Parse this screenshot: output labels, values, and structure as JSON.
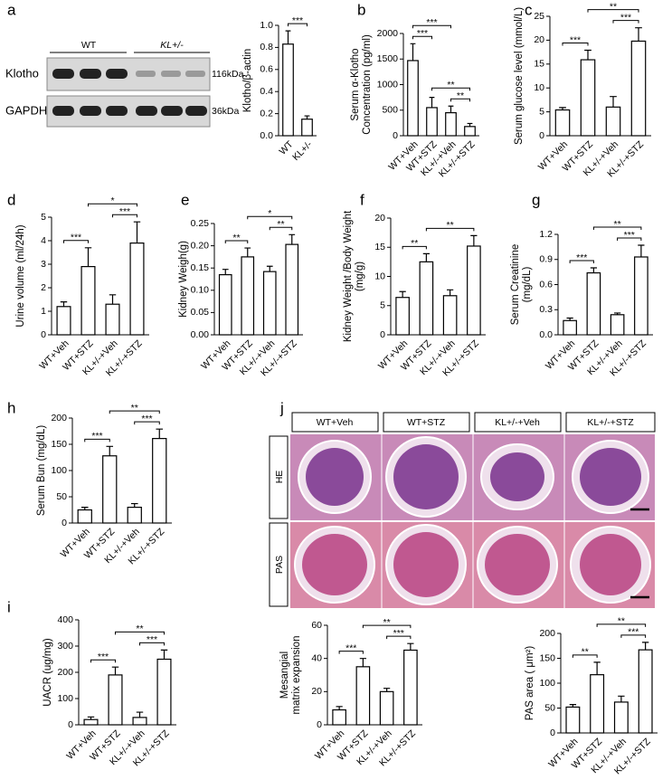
{
  "blot": {
    "panel": "a",
    "groups": [
      "WT",
      "KL+/-"
    ],
    "rows": [
      "Klotho",
      "GAPDH"
    ],
    "sizes": [
      "116kDa",
      "36kDa"
    ]
  },
  "histology": {
    "panel": "j",
    "columns": [
      "WT+Veh",
      "WT+STZ",
      "KL+/-+Veh",
      "KL+/-+STZ"
    ],
    "rows": [
      "HE",
      "PAS"
    ]
  },
  "chart_data": [
    {
      "type": "bar",
      "ylabel": [
        "Klotho/β-actin"
      ],
      "categories": [
        "WT",
        "KL+/-"
      ],
      "values": [
        0.83,
        0.15
      ],
      "errors": [
        0.12,
        0.03
      ],
      "color": "#ffffff",
      "edge_color": "#000000",
      "ylim": [
        0,
        1
      ],
      "yticks": [
        {
          "value": 0,
          "label": "0.0"
        },
        0.2,
        0.4,
        0.6,
        0.8,
        {
          "value": 1,
          "label": "1.0"
        }
      ],
      "brackets": [
        {
          "from": 0,
          "to": 1,
          "label": "***"
        }
      ]
    },
    {
      "type": "bar",
      "panel": "b",
      "ylabel": [
        "Serum α-Klotho",
        "Concentration (pg/ml)"
      ],
      "categories": [
        "WT+Veh",
        "WT+STZ",
        "KL+/-+Veh",
        "KL+/-+STZ"
      ],
      "values": [
        1470,
        550,
        450,
        180
      ],
      "errors": [
        330,
        200,
        130,
        60
      ],
      "color": "#ffffff",
      "edge_color": "#000000",
      "ylim": [
        0,
        2000
      ],
      "yticks": [
        0,
        500,
        1000,
        1500,
        2000
      ],
      "brackets": [
        {
          "from": 2,
          "to": 3,
          "label": "**"
        },
        {
          "from": 1,
          "to": 3,
          "label": "**"
        },
        {
          "from": 0,
          "to": 1,
          "label": "***"
        },
        {
          "from": 0,
          "to": 2,
          "label": "***"
        }
      ]
    },
    {
      "type": "bar",
      "panel": "c",
      "ylabel": [
        "Serum glucose level (mmol/L)"
      ],
      "categories": [
        "WT+Veh",
        "WT+STZ",
        "KL+/-+Veh",
        "KL+/-+STZ"
      ],
      "values": [
        5.4,
        15.9,
        6,
        19.8
      ],
      "errors": [
        0.5,
        2,
        2.2,
        2.8
      ],
      "color": "#ffffff",
      "edge_color": "#000000",
      "ylim": [
        0,
        25
      ],
      "yticks": [
        0,
        5,
        10,
        15,
        20,
        25
      ],
      "brackets": [
        {
          "from": 0,
          "to": 1,
          "label": "***"
        },
        {
          "from": 2,
          "to": 3,
          "label": "***"
        },
        {
          "from": 1,
          "to": 3,
          "label": "**"
        }
      ]
    },
    {
      "type": "bar",
      "panel": "d",
      "ylabel": [
        "Urine volume (ml/24h)"
      ],
      "categories": [
        "WT+Veh",
        "WT+STZ",
        "KL+/-+Veh",
        "KL+/-+STZ"
      ],
      "values": [
        1.2,
        2.9,
        1.3,
        3.9
      ],
      "errors": [
        0.2,
        0.8,
        0.4,
        0.9
      ],
      "color": "#ffffff",
      "edge_color": "#000000",
      "ylim": [
        0,
        5
      ],
      "yticks": [
        0,
        1,
        2,
        3,
        4,
        5
      ],
      "brackets": [
        {
          "from": 0,
          "to": 1,
          "label": "***"
        },
        {
          "from": 2,
          "to": 3,
          "label": "***"
        },
        {
          "from": 1,
          "to": 3,
          "label": "*"
        }
      ]
    },
    {
      "type": "bar",
      "panel": "e",
      "ylabel": [
        "Kidney Weigh(g)"
      ],
      "categories": [
        "WT+Veh",
        "WT+STZ",
        "KL+/-+Veh",
        "KL+/-+STZ"
      ],
      "values": [
        0.135,
        0.175,
        0.142,
        0.203
      ],
      "errors": [
        0.012,
        0.02,
        0.012,
        0.022
      ],
      "color": "#ffffff",
      "edge_color": "#000000",
      "ylim": [
        0,
        0.25
      ],
      "yticks": [
        {
          "value": 0,
          "label": "0.00"
        },
        0.05,
        {
          "value": 0.1,
          "label": "0.10"
        },
        0.15,
        {
          "value": 0.2,
          "label": "0.20"
        },
        0.25
      ],
      "brackets": [
        {
          "from": 0,
          "to": 1,
          "label": "**"
        },
        {
          "from": 2,
          "to": 3,
          "label": "**"
        },
        {
          "from": 1,
          "to": 3,
          "label": "*"
        }
      ]
    },
    {
      "type": "bar",
      "panel": "f",
      "ylabel": [
        "Kidney Weight /Body Weight",
        "(mg/g)"
      ],
      "categories": [
        "WT+Veh",
        "WT+STZ",
        "KL+/-+Veh",
        "KL+/-+STZ"
      ],
      "values": [
        6.4,
        12.5,
        6.7,
        15.2
      ],
      "errors": [
        1,
        1.4,
        1,
        1.8
      ],
      "color": "#ffffff",
      "edge_color": "#000000",
      "ylim": [
        0,
        20
      ],
      "yticks": [
        0,
        5,
        10,
        15,
        20
      ],
      "brackets": [
        {
          "from": 0,
          "to": 1,
          "label": "**"
        },
        {
          "from": 1,
          "to": 3,
          "label": "**"
        }
      ]
    },
    {
      "type": "bar",
      "panel": "g",
      "ylabel": [
        "Serum Creatinine",
        "(mg/dL)"
      ],
      "categories": [
        "WT+Veh",
        "WT+STZ",
        "KL+/-+Veh",
        "KL+/-+STZ"
      ],
      "values": [
        0.17,
        0.74,
        0.24,
        0.93
      ],
      "errors": [
        0.03,
        0.06,
        0.02,
        0.14
      ],
      "color": "#ffffff",
      "edge_color": "#000000",
      "ylim": [
        0,
        1.2
      ],
      "yticks": [
        {
          "value": 0,
          "label": "0.0"
        },
        0.3,
        0.6,
        0.9,
        1.2
      ],
      "brackets": [
        {
          "from": 0,
          "to": 1,
          "label": "***"
        },
        {
          "from": 2,
          "to": 3,
          "label": "***"
        },
        {
          "from": 1,
          "to": 3,
          "label": "**"
        }
      ]
    },
    {
      "type": "bar",
      "panel": "h",
      "ylabel": [
        "Serum Bun (mg/dL)"
      ],
      "categories": [
        "WT+Veh",
        "WT+STZ",
        "KL+/-+Veh",
        "KL+/-+STZ"
      ],
      "values": [
        25,
        128,
        30,
        161
      ],
      "errors": [
        5,
        18,
        7,
        18
      ],
      "color": "#ffffff",
      "edge_color": "#000000",
      "ylim": [
        0,
        200
      ],
      "yticks": [
        0,
        50,
        100,
        150,
        200
      ],
      "brackets": [
        {
          "from": 0,
          "to": 1,
          "label": "***"
        },
        {
          "from": 2,
          "to": 3,
          "label": "***"
        },
        {
          "from": 1,
          "to": 3,
          "label": "**"
        }
      ]
    },
    {
      "type": "bar",
      "panel": "i",
      "ylabel": [
        "UACR (ug/mg)"
      ],
      "categories": [
        "WT+Veh",
        "WT+STZ",
        "KL+/-+Veh",
        "KL+/-+STZ"
      ],
      "values": [
        20,
        190,
        28,
        250
      ],
      "errors": [
        10,
        30,
        20,
        35
      ],
      "color": "#ffffff",
      "edge_color": "#000000",
      "ylim": [
        0,
        400
      ],
      "yticks": [
        0,
        100,
        200,
        300,
        400
      ],
      "brackets": [
        {
          "from": 0,
          "to": 1,
          "label": "***"
        },
        {
          "from": 2,
          "to": 3,
          "label": "***"
        },
        {
          "from": 1,
          "to": 3,
          "label": "**"
        }
      ]
    },
    {
      "type": "bar",
      "ylabel": [
        "Mesangial",
        "matrix expansion"
      ],
      "categories": [
        "WT+Veh",
        "WT+STZ",
        "KL+/-+Veh",
        "KL+/-+STZ"
      ],
      "values": [
        9,
        35,
        20,
        45
      ],
      "errors": [
        2,
        5,
        2,
        4
      ],
      "color": "#ffffff",
      "edge_color": "#000000",
      "ylim": [
        0,
        60
      ],
      "yticks": [
        0,
        20,
        40,
        60
      ],
      "brackets": [
        {
          "from": 0,
          "to": 1,
          "label": "***"
        },
        {
          "from": 2,
          "to": 3,
          "label": "***"
        },
        {
          "from": 1,
          "to": 3,
          "label": "**"
        }
      ]
    },
    {
      "type": "bar",
      "ylabel": [
        "PAS area ( μm²)"
      ],
      "categories": [
        "WT+Veh",
        "WT+STZ",
        "KL+/-+Veh",
        "KL+/-+STZ"
      ],
      "values": [
        52,
        117,
        62,
        167
      ],
      "errors": [
        5,
        25,
        12,
        15
      ],
      "color": "#ffffff",
      "edge_color": "#000000",
      "ylim": [
        0,
        200
      ],
      "yticks": [
        0,
        50,
        100,
        150,
        200
      ],
      "brackets": [
        {
          "from": 0,
          "to": 1,
          "label": "**"
        },
        {
          "from": 2,
          "to": 3,
          "label": "***"
        },
        {
          "from": 1,
          "to": 3,
          "label": "**"
        }
      ]
    }
  ]
}
